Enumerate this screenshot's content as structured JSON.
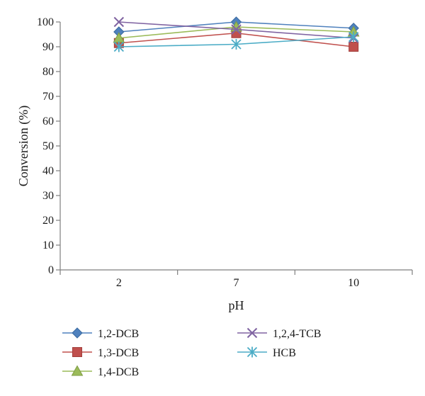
{
  "chart_data": {
    "type": "line",
    "x": [
      "2",
      "7",
      "10"
    ],
    "xlabel": "pH",
    "ylabel": "Conversion (%)",
    "ylim": [
      0,
      100
    ],
    "yticks": [
      0,
      10,
      20,
      30,
      40,
      50,
      60,
      70,
      80,
      90,
      100
    ],
    "grid": false,
    "legend_position": "bottom",
    "series": [
      {
        "name": "1,2-DCB",
        "values": [
          96,
          100,
          97.5
        ],
        "color": "#4f81bd",
        "marker": "diamond"
      },
      {
        "name": "1,3-DCB",
        "values": [
          91.5,
          95.5,
          90
        ],
        "color": "#c0504d",
        "marker": "square"
      },
      {
        "name": "1,4-DCB",
        "values": [
          93.5,
          98,
          96
        ],
        "color": "#9bbb59",
        "marker": "triangle"
      },
      {
        "name": "1,2,4-TCB",
        "values": [
          100,
          97,
          93.5
        ],
        "color": "#8064a2",
        "marker": "x"
      },
      {
        "name": "HCB",
        "values": [
          90,
          91,
          94
        ],
        "color": "#4bacc6",
        "marker": "star"
      }
    ]
  }
}
